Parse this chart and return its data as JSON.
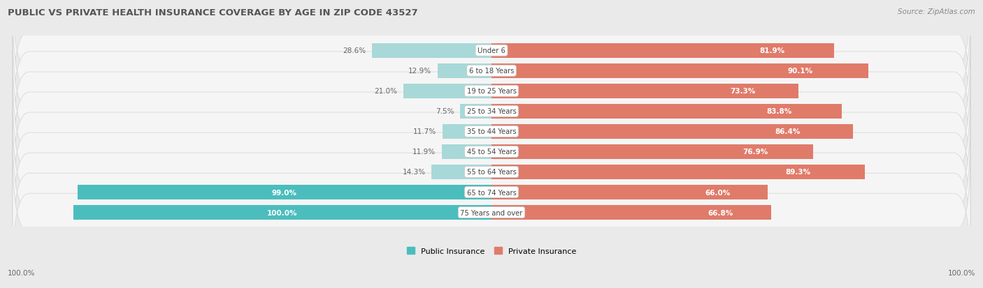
{
  "title": "PUBLIC VS PRIVATE HEALTH INSURANCE COVERAGE BY AGE IN ZIP CODE 43527",
  "source": "Source: ZipAtlas.com",
  "categories": [
    "Under 6",
    "6 to 18 Years",
    "19 to 25 Years",
    "25 to 34 Years",
    "35 to 44 Years",
    "45 to 54 Years",
    "55 to 64 Years",
    "65 to 74 Years",
    "75 Years and over"
  ],
  "public_values": [
    28.6,
    12.9,
    21.0,
    7.5,
    11.7,
    11.9,
    14.3,
    99.0,
    100.0
  ],
  "private_values": [
    81.9,
    90.1,
    73.3,
    83.8,
    86.4,
    76.9,
    89.3,
    66.0,
    66.8
  ],
  "public_color_full": "#4BBDBD",
  "public_color_light": "#A8D8D8",
  "private_color_full": "#E07B6A",
  "private_color_light": "#EFB0A8",
  "bg_color": "#EAEAEA",
  "row_bg_color": "#F5F5F5",
  "row_border_color": "#D8D8D8",
  "title_color": "#555555",
  "text_color_dark": "#666666",
  "text_color_white": "#FFFFFF",
  "legend_public": "Public Insurance",
  "legend_private": "Private Insurance",
  "max_value": 100.0,
  "threshold": 50.0
}
